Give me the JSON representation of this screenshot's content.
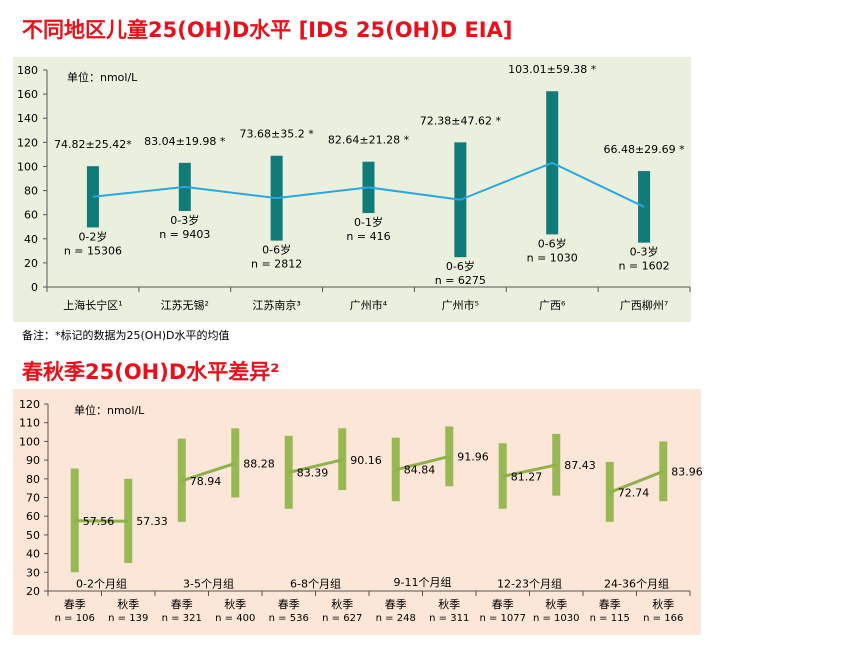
{
  "titles": {
    "chart1": "不同地区儿童25(OH)D水平  [IDS 25(OH)D EIA]",
    "chart2": "春秋季25(OH)D水平差异²"
  },
  "note": "备注：*标记的数据为25(OH)D水平的均值",
  "colors": {
    "chart1_bg": "#ebf0de",
    "chart2_bg": "#fbe6d8",
    "bar_teal": "#117b7a",
    "line_blue": "#2aa7e0",
    "bar_green": "#97b852",
    "line_green": "#8fb04a"
  },
  "chart_data": [
    {
      "type": "bar",
      "unit_label": "单位：nmol/L",
      "ylim": [
        0,
        180
      ],
      "yticks": [
        0,
        20,
        40,
        60,
        80,
        100,
        120,
        140,
        160,
        180
      ],
      "categories": [
        "上海长宁区¹",
        "江苏无锡²",
        "江苏南京³",
        "广州市⁴",
        "广州市⁵",
        "广西⁶",
        "广西柳州⁷"
      ],
      "mean_labels": [
        "74.82±25.42*",
        "83.04±19.98 *",
        "73.68±35.2 *",
        "82.64±21.28 *",
        "72.38±47.62 *",
        "103.01±59.38 *",
        "66.48±29.69 *"
      ],
      "means": [
        74.82,
        83.04,
        73.68,
        82.64,
        72.38,
        103.01,
        66.48
      ],
      "sd": [
        25.42,
        19.98,
        35.2,
        21.28,
        47.62,
        59.38,
        29.69
      ],
      "age_labels": [
        "0-2岁",
        "0-3岁",
        "0-6岁",
        "0-1岁",
        "0-6岁",
        "0-6岁",
        "0-3岁"
      ],
      "n_labels": [
        "n = 15306",
        "n = 9403",
        "n = 2812",
        "n = 416",
        "n = 6275",
        "n = 1030",
        "n = 1602"
      ]
    },
    {
      "type": "bar",
      "unit_label": "单位：nmol/L",
      "ylim": [
        20,
        120
      ],
      "yticks": [
        20,
        30,
        40,
        50,
        60,
        70,
        80,
        90,
        100,
        110,
        120
      ],
      "categories": [
        "春季",
        "秋季",
        "春季",
        "秋季",
        "春季",
        "秋季",
        "春季",
        "秋季",
        "春季",
        "秋季",
        "春季",
        "秋季"
      ],
      "n_labels": [
        "n = 106",
        "n = 139",
        "n = 321",
        "n = 400",
        "n = 536",
        "n = 627",
        "n = 248",
        "n = 311",
        "n = 1077",
        "n = 1030",
        "n = 115",
        "n = 166"
      ],
      "groups": [
        "0-2个月组",
        "3-5个月组",
        "6-8个月组",
        "9-11个月组",
        "12-23个月组",
        "24-36个月组"
      ],
      "means": [
        57.56,
        57.33,
        78.94,
        88.28,
        83.39,
        90.16,
        84.84,
        91.96,
        81.27,
        87.43,
        72.74,
        83.96
      ],
      "mean_labels": [
        "57.56",
        "57.33",
        "78.94",
        "88.28",
        "83.39",
        "90.16",
        "84.84",
        "91.96",
        "81.27",
        "87.43",
        "72.74",
        "83.96"
      ],
      "lows": [
        30,
        35,
        57,
        70,
        64,
        74,
        68,
        76,
        64,
        71,
        57,
        68
      ],
      "highs": [
        85.5,
        80,
        101.5,
        107,
        103,
        107,
        102,
        108,
        99,
        104,
        89,
        100
      ]
    }
  ]
}
